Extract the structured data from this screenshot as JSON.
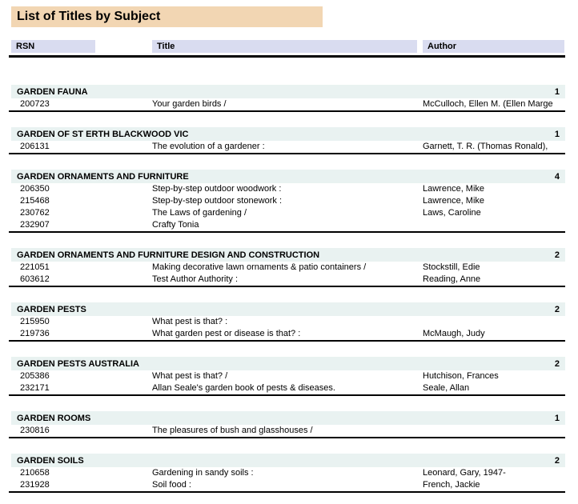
{
  "report": {
    "title": "List of Titles by Subject",
    "columns": {
      "rsn": "RSN",
      "title": "Title",
      "author": "Author"
    },
    "colors": {
      "title_bg": "#F2D6B3",
      "column_header_bg": "#D9DCF0",
      "group_header_bg": "#E9F2F1",
      "rule": "#000000",
      "text": "#000000"
    },
    "groups": [
      {
        "subject": "GARDEN FAUNA",
        "count": "1",
        "rows": [
          {
            "rsn": "200723",
            "title": "Your garden birds /",
            "author": "McCulloch, Ellen M. (Ellen Marge"
          }
        ]
      },
      {
        "subject": "GARDEN OF ST ERTH BLACKWOOD VIC",
        "count": "1",
        "rows": [
          {
            "rsn": "206131",
            "title": "The evolution of a gardener :",
            "author": "Garnett, T. R. (Thomas Ronald),"
          }
        ]
      },
      {
        "subject": "GARDEN ORNAMENTS AND FURNITURE",
        "count": "4",
        "rows": [
          {
            "rsn": "206350",
            "title": "Step-by-step outdoor woodwork :",
            "author": "Lawrence, Mike"
          },
          {
            "rsn": "215468",
            "title": "Step-by-step outdoor stonework :",
            "author": "Lawrence, Mike"
          },
          {
            "rsn": "230762",
            "title": "The Laws of gardening /",
            "author": "Laws, Caroline"
          },
          {
            "rsn": "232907",
            "title": "Crafty Tonia",
            "author": ""
          }
        ]
      },
      {
        "subject": "GARDEN ORNAMENTS AND FURNITURE DESIGN AND CONSTRUCTION",
        "count": "2",
        "rows": [
          {
            "rsn": "221051",
            "title": "Making decorative lawn ornaments & patio containers /",
            "author": "Stockstill, Edie"
          },
          {
            "rsn": "603612",
            "title": "Test Author Authority :",
            "author": "Reading, Anne"
          }
        ]
      },
      {
        "subject": "GARDEN PESTS",
        "count": "2",
        "rows": [
          {
            "rsn": "215950",
            "title": "What pest is that? :",
            "author": ""
          },
          {
            "rsn": "219736",
            "title": "What garden pest or disease is that? :",
            "author": "McMaugh, Judy"
          }
        ]
      },
      {
        "subject": "GARDEN PESTS AUSTRALIA",
        "count": "2",
        "rows": [
          {
            "rsn": "205386",
            "title": "What pest is that? /",
            "author": "Hutchison, Frances"
          },
          {
            "rsn": "232171",
            "title": "Allan Seale's garden book of pests & diseases.",
            "author": "Seale, Allan"
          }
        ]
      },
      {
        "subject": "GARDEN ROOMS",
        "count": "1",
        "rows": [
          {
            "rsn": "230816",
            "title": "The pleasures of bush and glasshouses /",
            "author": ""
          }
        ]
      },
      {
        "subject": "GARDEN SOILS",
        "count": "2",
        "rows": [
          {
            "rsn": "210658",
            "title": "Gardening in sandy soils :",
            "author": "Leonard, Gary, 1947-"
          },
          {
            "rsn": "231928",
            "title": "Soil food :",
            "author": "French, Jackie"
          }
        ]
      }
    ]
  }
}
